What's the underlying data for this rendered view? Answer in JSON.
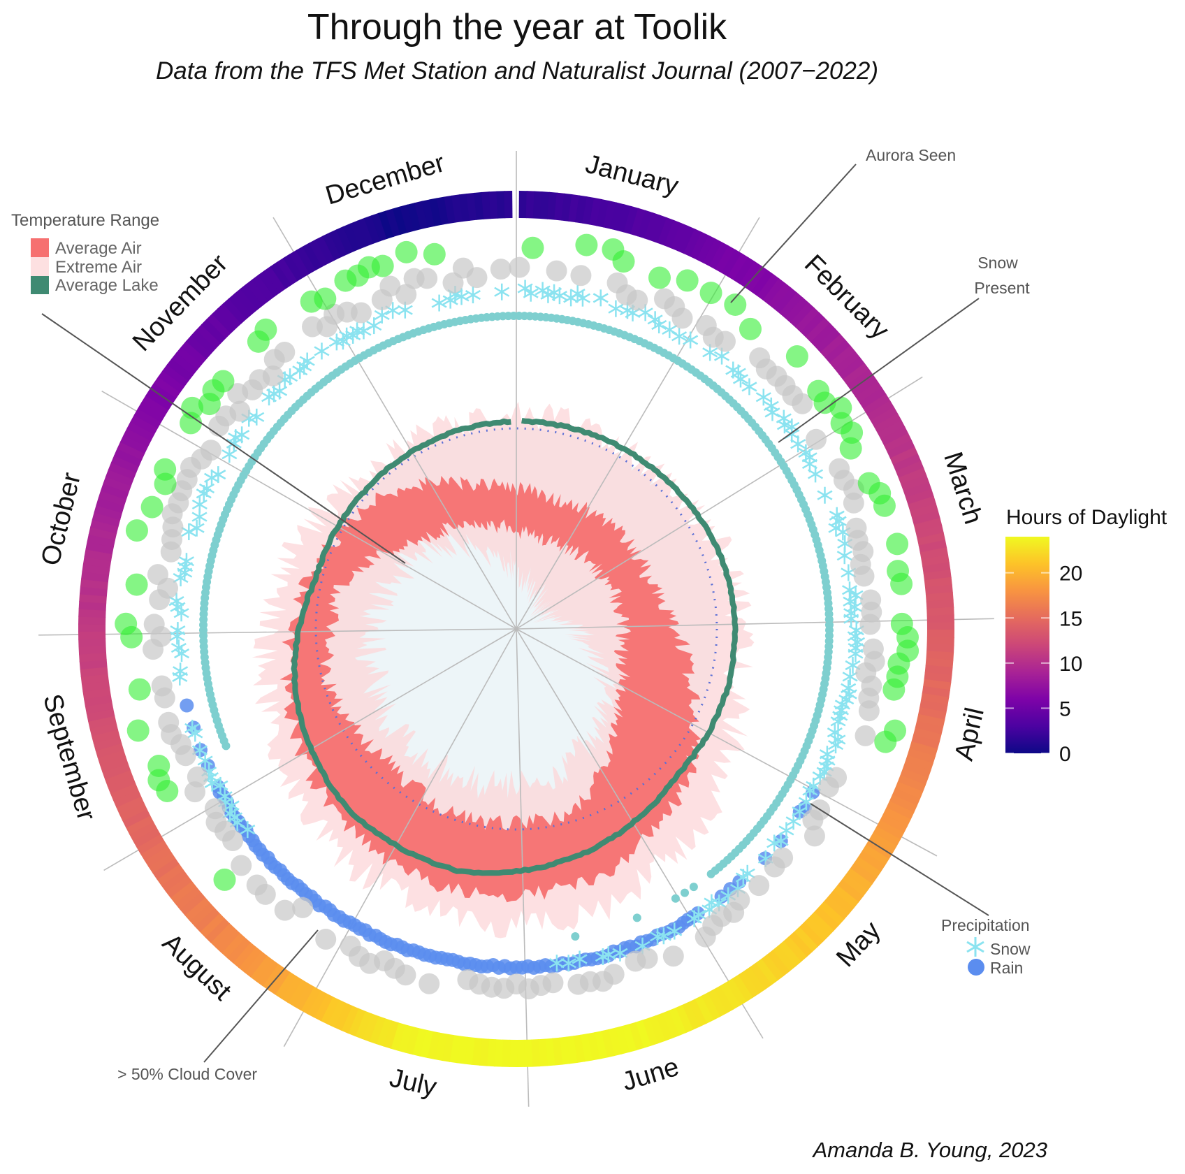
{
  "chart_data": {
    "type": "radial",
    "title": "Through the year at Toolik",
    "subtitle": "Data from the TFS Met Station and Naturalist Journal (2007−2022)",
    "credit": "Amanda B. Young, 2023",
    "months": [
      "January",
      "February",
      "March",
      "April",
      "May",
      "June",
      "July",
      "August",
      "September",
      "October",
      "November",
      "December"
    ],
    "temperature_units": "degC (monthly mid-month estimates)",
    "average_air_min": [
      -26,
      -24,
      -23,
      -22,
      -16,
      -2,
      -1,
      -4,
      -1,
      -5,
      -17,
      -22
    ],
    "average_air_max": [
      -16,
      -14,
      -14,
      -6,
      7,
      15,
      16,
      14,
      9,
      3,
      -3,
      -12
    ],
    "extreme_air_min": [
      -37,
      -40,
      -40,
      -30,
      -20,
      -12,
      -10,
      -10,
      -12,
      -15,
      -20,
      -30
    ],
    "extreme_air_max": [
      3,
      2,
      5,
      6,
      15,
      22,
      23,
      20,
      14,
      9,
      4,
      3
    ],
    "average_lake": [
      1.8,
      2.5,
      4,
      4.5,
      4,
      8,
      11.5,
      11,
      7,
      1.5,
      1,
      1.5
    ],
    "hours_of_daylight": [
      3,
      8,
      11.5,
      15.5,
      21,
      24,
      24,
      17,
      13,
      9,
      4.5,
      0
    ],
    "aurora_seen_days": {
      "ranges": [
        [
          232,
          365
        ],
        [
          1,
          112
        ]
      ],
      "frequency": 0.55
    },
    "cloud_cover_over_50pct_days": {
      "ranges": [
        [
          1,
          365
        ]
      ],
      "frequency": 0.75
    },
    "snow_days": {
      "ranges": [
        [
          237,
          365
        ],
        [
          1,
          176
        ]
      ],
      "frequency": 0.6
    },
    "rain_days": {
      "ranges": [
        [
          121,
          262
        ]
      ],
      "frequency": 0.85
    },
    "snow_present_days": {
      "ranges": [
        [
          252,
          365
        ],
        [
          1,
          144
        ]
      ],
      "extra_days": [
        148,
        150,
        152,
        160,
        172
      ]
    },
    "legend": {
      "temperature": {
        "title": "Temperature Range",
        "items": [
          {
            "label": "Average Air",
            "color": "#f67070"
          },
          {
            "label": "Extreme Air",
            "color": "#fde0e1"
          },
          {
            "label": "Average Lake",
            "color": "#3f8a72"
          }
        ]
      },
      "precipitation": {
        "title": "Precipitation",
        "items": [
          {
            "label": "Snow",
            "color": "#8be3f0"
          },
          {
            "label": "Rain",
            "color": "#5b8def"
          }
        ]
      },
      "colorbar": {
        "title": "Hours of Daylight",
        "ticks": [
          "0",
          "5",
          "10",
          "15",
          "20"
        ],
        "range": [
          0,
          24
        ]
      }
    },
    "annotations": {
      "aurora": "Aurora Seen",
      "snow_present_1": "Snow",
      "snow_present_2": "Present",
      "cloud": "> 50% Cloud Cover"
    },
    "colors": {
      "aurora": "#33ee33",
      "cloud": "#c8c8c8",
      "snow_present": "#7ecfcf",
      "lake": "#3f8a72",
      "avg_air": "#f67070",
      "extreme_air": "#fcd6d8",
      "zero_line": "#5b6fd6"
    }
  }
}
